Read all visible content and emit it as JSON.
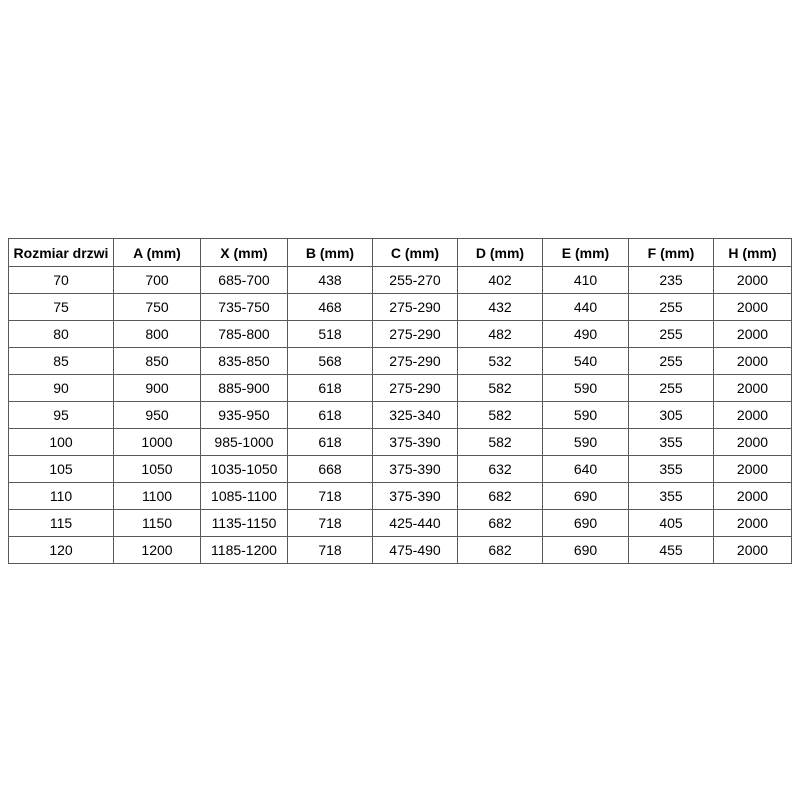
{
  "page": {
    "background_color": "#ffffff",
    "border_color": "#595959",
    "text_color": "#000000"
  },
  "table": {
    "headers": [
      "Rozmiar drzwi",
      "A (mm)",
      "X (mm)",
      "B (mm)",
      "C (mm)",
      "D (mm)",
      "E (mm)",
      "F (mm)",
      "H (mm)"
    ],
    "rows": [
      [
        "70",
        "700",
        "685-700",
        "438",
        "255-270",
        "402",
        "410",
        "235",
        "2000"
      ],
      [
        "75",
        "750",
        "735-750",
        "468",
        "275-290",
        "432",
        "440",
        "255",
        "2000"
      ],
      [
        "80",
        "800",
        "785-800",
        "518",
        "275-290",
        "482",
        "490",
        "255",
        "2000"
      ],
      [
        "85",
        "850",
        "835-850",
        "568",
        "275-290",
        "532",
        "540",
        "255",
        "2000"
      ],
      [
        "90",
        "900",
        "885-900",
        "618",
        "275-290",
        "582",
        "590",
        "255",
        "2000"
      ],
      [
        "95",
        "950",
        "935-950",
        "618",
        "325-340",
        "582",
        "590",
        "305",
        "2000"
      ],
      [
        "100",
        "1000",
        "985-1000",
        "618",
        "375-390",
        "582",
        "590",
        "355",
        "2000"
      ],
      [
        "105",
        "1050",
        "1035-1050",
        "668",
        "375-390",
        "632",
        "640",
        "355",
        "2000"
      ],
      [
        "110",
        "1100",
        "1085-1100",
        "718",
        "375-390",
        "682",
        "690",
        "355",
        "2000"
      ],
      [
        "115",
        "1150",
        "1135-1150",
        "718",
        "425-440",
        "682",
        "690",
        "405",
        "2000"
      ],
      [
        "120",
        "1200",
        "1185-1200",
        "718",
        "475-490",
        "682",
        "690",
        "455",
        "2000"
      ]
    ]
  }
}
